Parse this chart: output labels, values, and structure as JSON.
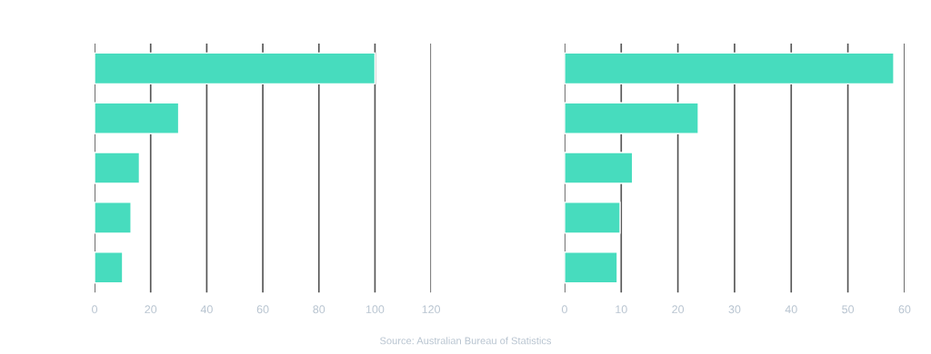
{
  "chart_data": [
    {
      "type": "bar",
      "orientation": "horizontal",
      "categories": [
        null,
        null,
        null,
        null,
        null
      ],
      "values": [
        100,
        30,
        16,
        13,
        10
      ],
      "color": "#47dcbe",
      "xlim": [
        0,
        120
      ],
      "xticks": [
        0,
        20,
        40,
        60,
        80,
        100,
        120
      ],
      "grid": "x",
      "tick_labels": "x"
    },
    {
      "type": "bar",
      "orientation": "horizontal",
      "categories": [
        null,
        null,
        null,
        null,
        null
      ],
      "values": [
        58.1,
        23.6,
        12,
        9.8,
        9.3
      ],
      "color": "#47dcbe",
      "xlim": [
        0,
        60
      ],
      "xticks": [
        0,
        10,
        20,
        30,
        40,
        50,
        60
      ],
      "grid": "x",
      "tick_labels": "x",
      "annotations": [
        "Source: Australian Bureau of Statistics"
      ]
    }
  ]
}
